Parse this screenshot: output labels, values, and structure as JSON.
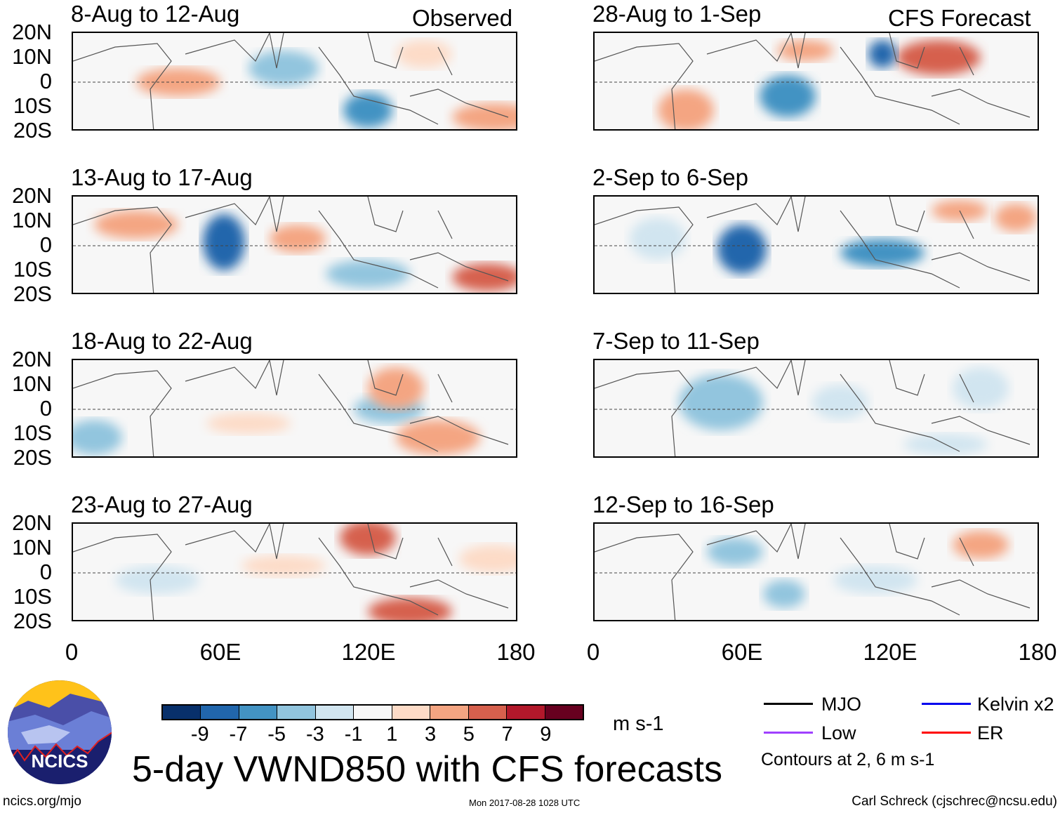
{
  "panels_observed": {
    "label": "Observed",
    "titles": [
      "8-Aug to 12-Aug",
      "13-Aug to 17-Aug",
      "18-Aug to 22-Aug",
      "23-Aug to 27-Aug"
    ]
  },
  "panels_forecast": {
    "label": "CFS Forecast",
    "titles": [
      "28-Aug to 1-Sep",
      "2-Sep to 6-Sep",
      "7-Sep to 11-Sep",
      "12-Sep to 16-Sep"
    ]
  },
  "lat_labels": [
    "20N",
    "10N",
    "0",
    "10S",
    "20S"
  ],
  "lon_labels": [
    "0",
    "60E",
    "120E",
    "180"
  ],
  "colorbar": {
    "colors": [
      "#08306b",
      "#2166ac",
      "#4393c3",
      "#92c5de",
      "#d1e5f0",
      "#f7f7f7",
      "#fddbc7",
      "#f4a582",
      "#d6604d",
      "#b2182b",
      "#67001f"
    ],
    "labels": [
      "-9",
      "-7",
      "-5",
      "-3",
      "-1",
      "1",
      "3",
      "5",
      "7",
      "9"
    ],
    "unit": "m s-1"
  },
  "title": "5-day VWND850 with CFS forecasts",
  "legend": {
    "items": [
      {
        "label": "MJO",
        "color": "#000000"
      },
      {
        "label": "Kelvin x2",
        "color": "#0000ee"
      },
      {
        "label": "Low",
        "color": "#a040ff"
      },
      {
        "label": "ER",
        "color": "#ff0000"
      }
    ],
    "contours": "Contours at 2, 6 m s-1"
  },
  "logo_text": "NCICS",
  "footer": {
    "url": "ncics.org/mjo",
    "timestamp": "Mon 2017-08-28 1028 UTC",
    "author": "Carl Schreck (cjschrec@ncsu.edu)"
  }
}
